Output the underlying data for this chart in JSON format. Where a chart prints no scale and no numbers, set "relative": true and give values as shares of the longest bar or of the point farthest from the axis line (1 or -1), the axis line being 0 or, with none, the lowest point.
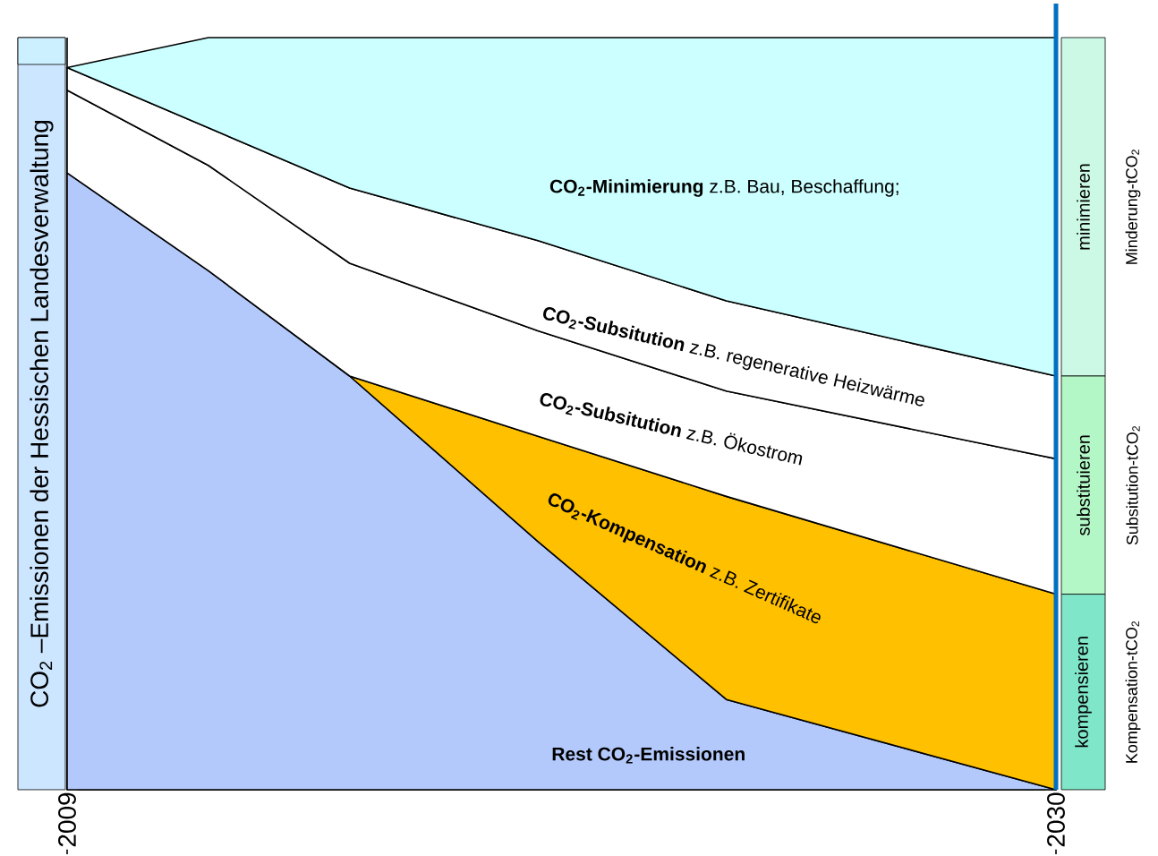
{
  "chart_data": {
    "type": "area",
    "stacked": true,
    "relative": true,
    "tick_labels": "x",
    "ylabel": "CO$_{2}$ –Emissionen der  Hessischen Landesverwaltung",
    "x": [
      2009,
      2012,
      2015,
      2019,
      2023,
      2030
    ],
    "xlim": [
      2009,
      2030
    ],
    "xticks": [
      2009,
      2030
    ],
    "series": [
      {
        "name": "**Rest CO$_{2}$-Emissionen**",
        "color": "#b3c9fc",
        "values": [
          0.82,
          0.69,
          0.55,
          0.33,
          0.12,
          0
        ]
      },
      {
        "name": "**CO$_{2}$-Kompensation** z.B. Zertifikate",
        "color": "#ffc000",
        "values": [
          null,
          null,
          0,
          0.14,
          0.27,
          0.26
        ]
      },
      {
        "name": "**CO$_{2}$-Subsitution** z.B. Ökostrom",
        "color": "#ffffff",
        "values": [
          0.11,
          0.14,
          0.15,
          0.14,
          0.14,
          0.18
        ]
      },
      {
        "name": "**CO$_{2}$-Subsitution** z.B. regenerative  Heizwärme",
        "color": "#ffffff",
        "values": [
          0.03,
          0.05,
          0.1,
          0.12,
          0.12,
          0.11
        ]
      },
      {
        "name": "**CO$_{2}$-Minimierung**  z.B. Bau, Beschaffung;",
        "color": "#ccffff",
        "values": [
          0,
          0.12,
          0.2,
          0.27,
          0.35,
          0.45
        ]
      }
    ],
    "ref_lines": [
      {
        "axis": "x",
        "value": 2030,
        "color": "#0070c0"
      }
    ],
    "annotations": [
      "minimieren",
      "substituieren",
      "kompensieren",
      "Minderung-tCO$_{2}$",
      "Subsitution-tCO$_{2}$",
      "Kompensation-tCO$_{2}$"
    ]
  }
}
